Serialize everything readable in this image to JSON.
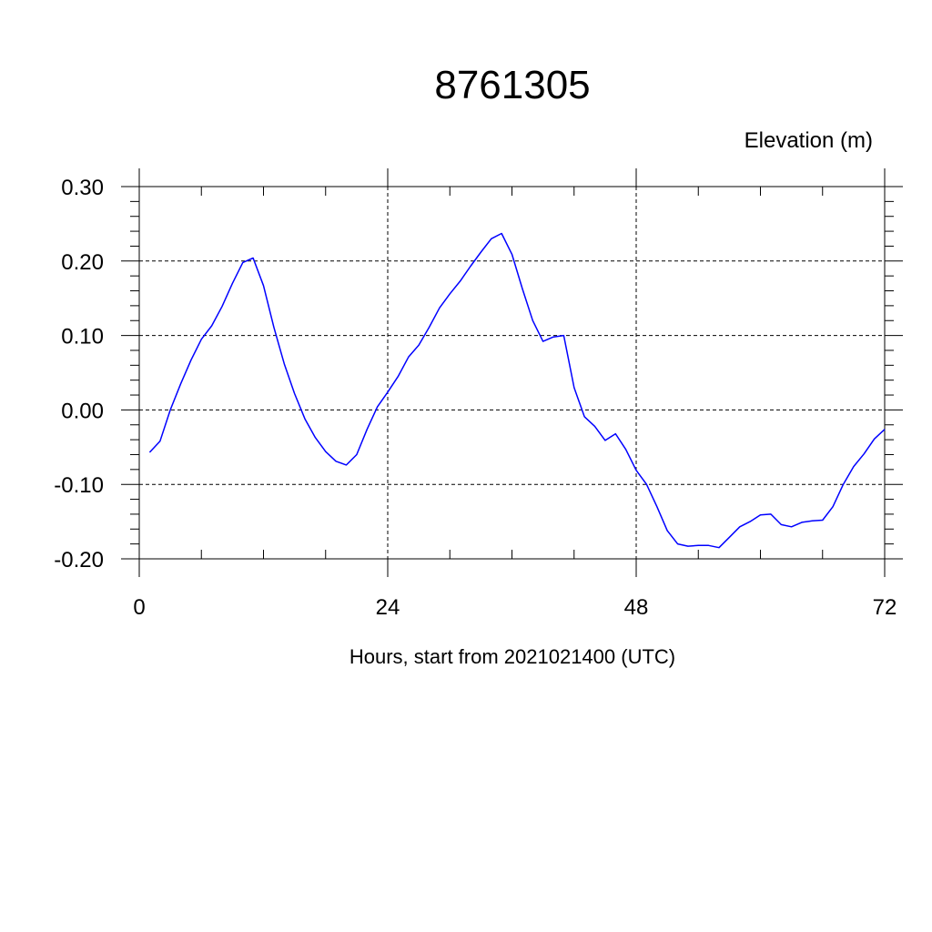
{
  "chart_data": {
    "type": "line",
    "title": "8761305",
    "corner_label": "Elevation (m)",
    "xlabel": "Hours, start from 2021021400 (UTC)",
    "ylabel": "",
    "xlim": [
      0,
      72
    ],
    "ylim": [
      -0.2,
      0.3
    ],
    "x_ticks": [
      0,
      24,
      48,
      72
    ],
    "x_tick_labels": [
      "0",
      "24",
      "48",
      "72"
    ],
    "y_ticks": [
      0.3,
      0.2,
      0.1,
      0.0,
      -0.1,
      -0.2
    ],
    "y_tick_labels": [
      "0.30",
      "0.20",
      "0.10",
      "0.00",
      "-0.10",
      "-0.20"
    ],
    "grid": true,
    "line_color": "#0000ff",
    "series": [
      {
        "x": [
          1,
          2,
          3,
          4,
          5,
          6,
          7,
          8,
          9,
          10,
          11,
          12,
          13,
          14,
          15,
          16,
          17,
          18,
          19,
          20,
          21,
          22,
          23,
          24,
          25,
          26,
          27,
          28,
          29,
          30,
          31,
          32,
          33,
          34,
          35,
          36,
          37,
          38,
          39,
          40,
          41,
          42,
          43,
          44,
          45,
          46,
          47,
          48,
          49,
          50,
          51,
          52,
          53,
          54,
          55,
          56,
          57,
          58,
          59,
          60,
          61,
          62,
          63,
          64,
          65,
          66,
          67,
          68,
          69,
          70,
          71,
          72
        ],
        "values": [
          -0.057,
          -0.042,
          0.0,
          0.035,
          0.067,
          0.095,
          0.113,
          0.139,
          0.17,
          0.198,
          0.204,
          0.167,
          0.111,
          0.062,
          0.022,
          -0.012,
          -0.037,
          -0.056,
          -0.069,
          -0.074,
          -0.06,
          -0.026,
          0.004,
          0.024,
          0.045,
          0.071,
          0.087,
          0.111,
          0.137,
          0.156,
          0.173,
          0.193,
          0.212,
          0.23,
          0.237,
          0.209,
          0.163,
          0.12,
          0.092,
          0.098,
          0.1,
          0.03,
          -0.009,
          -0.022,
          -0.041,
          -0.032,
          -0.053,
          -0.081,
          -0.1,
          -0.13,
          -0.162,
          -0.18,
          -0.183,
          -0.182,
          -0.182,
          -0.185,
          -0.171,
          -0.157,
          -0.15,
          -0.141,
          -0.14,
          -0.154,
          -0.157,
          -0.151,
          -0.149,
          -0.148,
          -0.13,
          -0.1,
          -0.076,
          -0.059,
          -0.039,
          -0.026
        ]
      }
    ]
  }
}
